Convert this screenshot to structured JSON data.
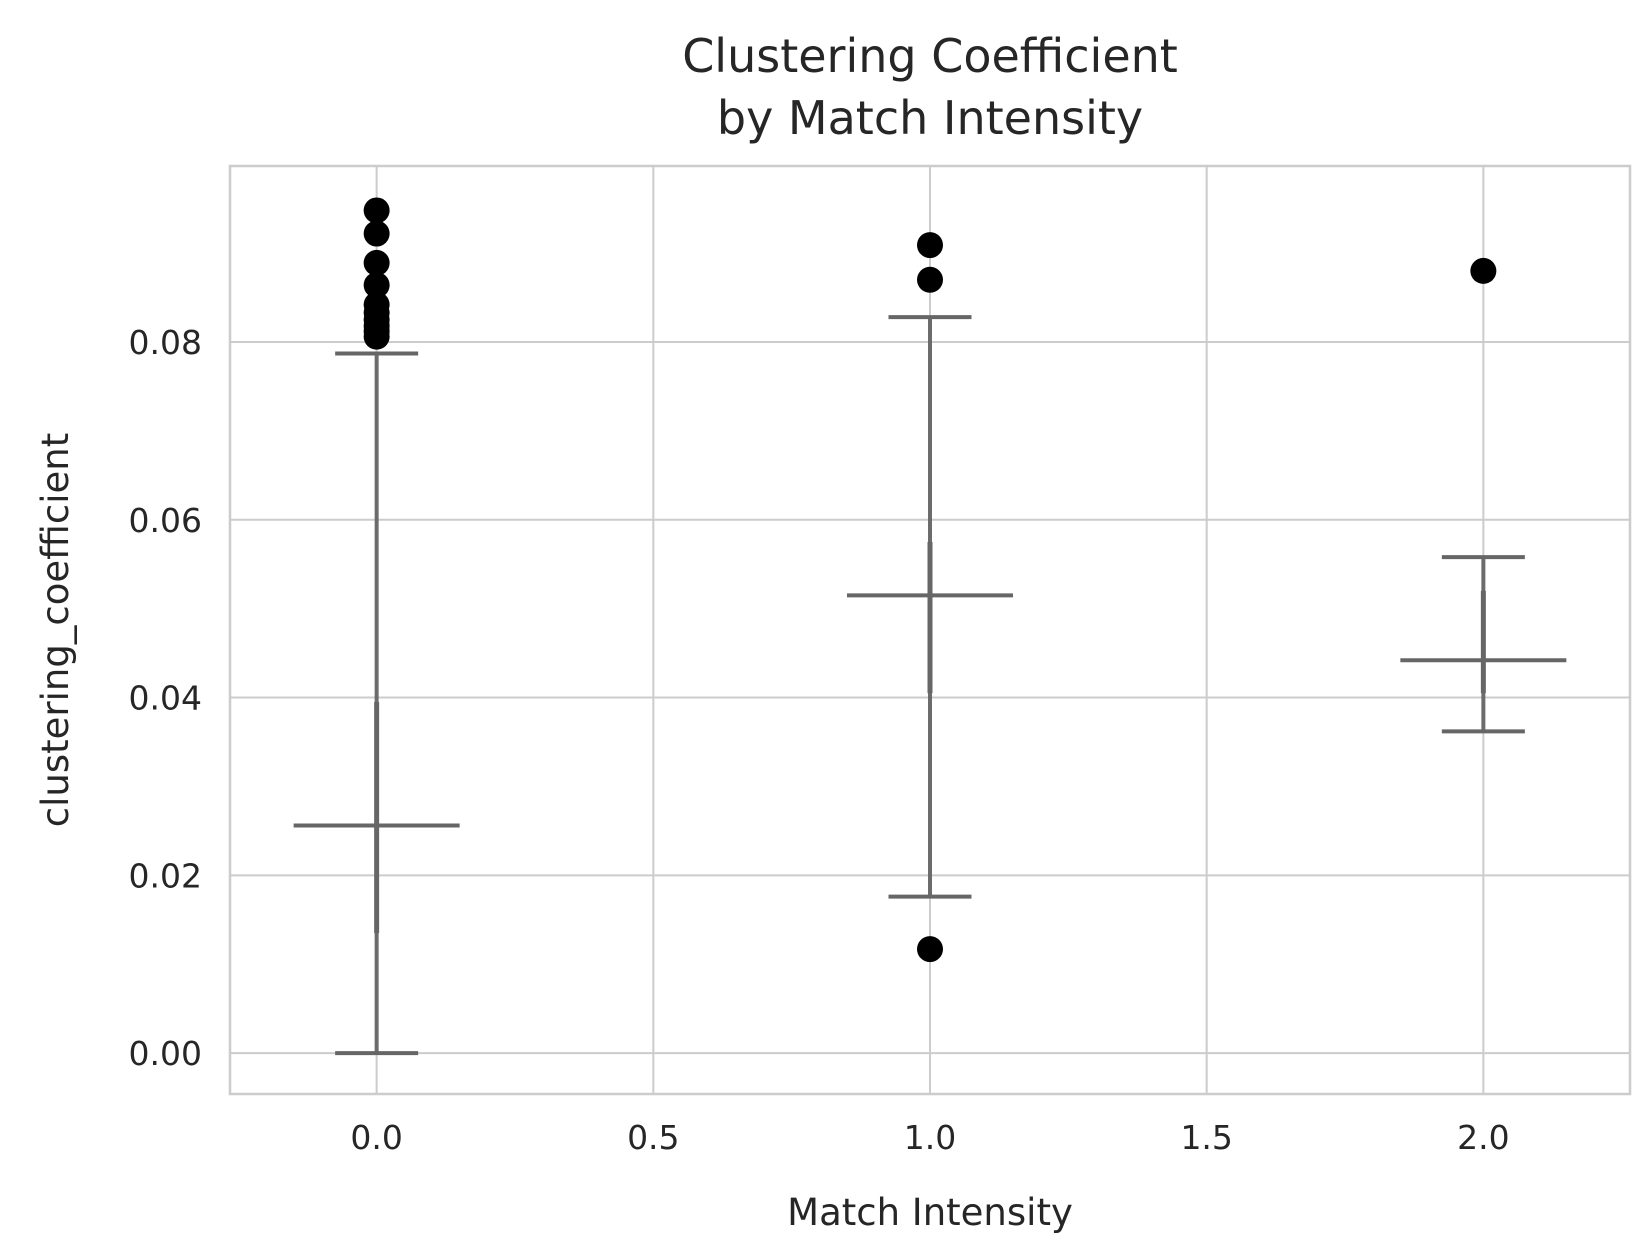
{
  "chart_data": {
    "type": "boxplot",
    "title_lines": [
      "Clustering Coefficient",
      "by Match Intensity"
    ],
    "xlabel": "Match Intensity",
    "ylabel": "clustering_coefficient",
    "xlim": [
      -0.265,
      2.265
    ],
    "ylim": [
      -0.0046,
      0.0998
    ],
    "xticks": [
      0.0,
      0.5,
      1.0,
      1.5,
      2.0
    ],
    "xtick_labels": [
      "0.0",
      "0.5",
      "1.0",
      "1.5",
      "2.0"
    ],
    "yticks": [
      0.0,
      0.02,
      0.04,
      0.06,
      0.08
    ],
    "ytick_labels": [
      "0.00",
      "0.02",
      "0.04",
      "0.06",
      "0.08"
    ],
    "grid": true,
    "colors": {
      "whisker": "#666666",
      "outlier": "#000000",
      "grid": "#cccccc"
    },
    "groups": [
      {
        "x": 0.0,
        "q1": 0.0135,
        "median": 0.0256,
        "q3": 0.0395,
        "whisker_low": 0.0,
        "whisker_high": 0.0787,
        "median_half_width": 0.15,
        "cap_half_width": 0.075,
        "outliers": [
          0.0948,
          0.0922,
          0.0889,
          0.0864,
          0.0842,
          0.0833,
          0.0825,
          0.0818,
          0.0812,
          0.0806
        ]
      },
      {
        "x": 1.0,
        "q1": 0.0405,
        "median": 0.0515,
        "q3": 0.0575,
        "whisker_low": 0.0176,
        "whisker_high": 0.0828,
        "median_half_width": 0.15,
        "cap_half_width": 0.075,
        "outliers": [
          0.0909,
          0.087,
          0.0117
        ]
      },
      {
        "x": 2.0,
        "q1": 0.0405,
        "median": 0.0442,
        "q3": 0.052,
        "whisker_low": 0.0362,
        "whisker_high": 0.0558,
        "median_half_width": 0.15,
        "cap_half_width": 0.075,
        "outliers": [
          0.088
        ]
      }
    ]
  }
}
